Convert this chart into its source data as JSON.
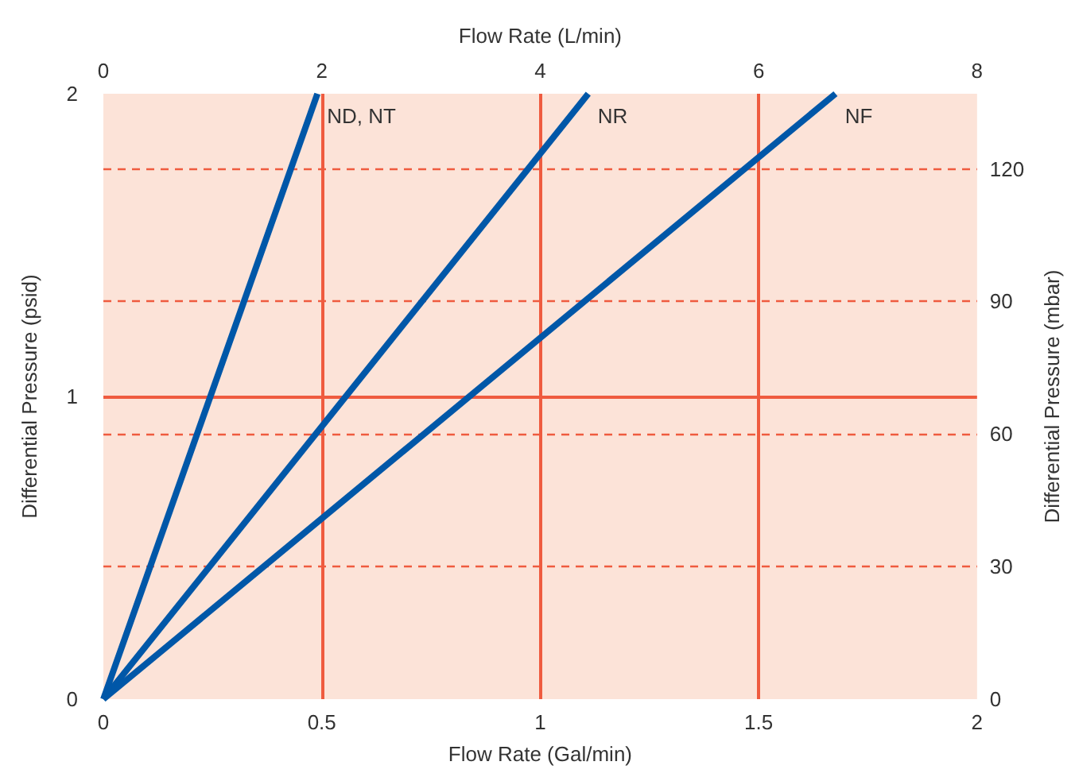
{
  "chart_data": {
    "type": "line",
    "xlabel": "Flow Rate (Gal/min)",
    "x2label": "Flow Rate (L/min)",
    "ylabel": "Differential Pressure (psid)",
    "y2label": "Differential Pressure (mbar)",
    "xlim": [
      0,
      2
    ],
    "xticks": [
      0,
      0.5,
      1,
      1.5,
      2
    ],
    "x2lim": [
      0,
      8
    ],
    "x2ticks": [
      0,
      2,
      4,
      6,
      8
    ],
    "ylim": [
      0,
      2
    ],
    "yticks": [
      0,
      1,
      2
    ],
    "y2lim": [
      0,
      137
    ],
    "y2ticks": [
      0,
      30,
      60,
      90,
      120
    ],
    "grid": true,
    "legend": false,
    "marker": "none",
    "line_style": "solid",
    "series": [
      {
        "name": "ND, NT",
        "color": "#0057a8",
        "x": [
          0,
          0.49
        ],
        "values": [
          0,
          2
        ]
      },
      {
        "name": "NR",
        "color": "#0057a8",
        "x": [
          0,
          1.11
        ],
        "values": [
          0,
          2
        ]
      },
      {
        "name": "NF",
        "color": "#0057a8",
        "x": [
          0,
          1.676
        ],
        "values": [
          0,
          2
        ]
      }
    ]
  }
}
